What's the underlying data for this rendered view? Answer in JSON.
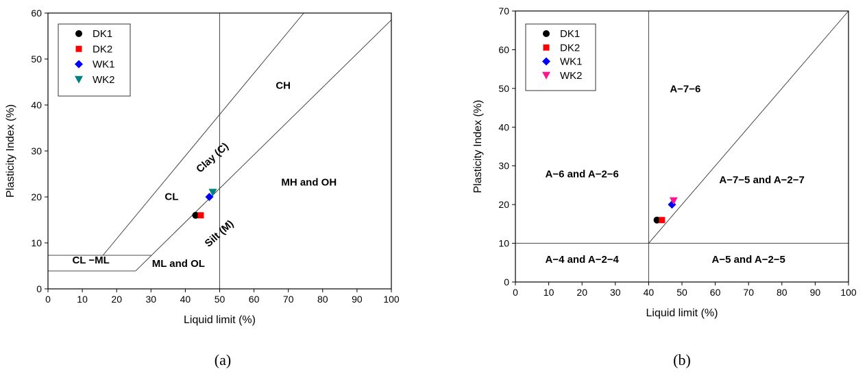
{
  "chart_data": [
    {
      "type": "scatter",
      "panel_label": "(a)",
      "xlabel": "Liquid limit (%)",
      "ylabel": "Plasticity Index (%)",
      "xlim": [
        0,
        100
      ],
      "ylim": [
        0,
        60
      ],
      "x_ticks": [
        0,
        10,
        20,
        30,
        40,
        50,
        60,
        70,
        80,
        90,
        100
      ],
      "y_ticks": [
        0,
        10,
        20,
        30,
        40,
        50,
        60
      ],
      "grid": false,
      "legend_position": "top-left",
      "series": [
        {
          "name": "DK1",
          "marker": "circle",
          "color": "#000000",
          "points": [
            [
              43,
              16
            ]
          ]
        },
        {
          "name": "DK2",
          "marker": "square",
          "color": "#ff0000",
          "points": [
            [
              44.5,
              16
            ]
          ]
        },
        {
          "name": "WK1",
          "marker": "diamond",
          "color": "#0000ff",
          "points": [
            [
              47,
              20
            ]
          ]
        },
        {
          "name": "WK2",
          "marker": "triangle-down",
          "color": "#008080",
          "points": [
            [
              48,
              21
            ]
          ]
        }
      ],
      "lines": [
        {
          "points": [
            [
              16,
              7.3
            ],
            [
              74.5,
              60
            ]
          ]
        },
        {
          "points": [
            [
              25.5,
              3.9
            ],
            [
              100,
              58.5
            ]
          ]
        },
        {
          "points": [
            [
              50,
              0
            ],
            [
              50,
              60
            ]
          ]
        },
        {
          "points": [
            [
              0,
              7.3
            ],
            [
              30,
              7.3
            ]
          ]
        },
        {
          "points": [
            [
              0,
              3.9
            ],
            [
              25.5,
              3.9
            ]
          ]
        },
        {
          "points": [
            [
              0,
              3.9
            ],
            [
              0,
              7.3
            ]
          ]
        }
      ],
      "annotations": [
        {
          "text": "CH",
          "x": 68.5,
          "y": 43.5,
          "color": "#000000",
          "rotate": 0
        },
        {
          "text": "MH and OH",
          "x": 76,
          "y": 22.5,
          "color": "#000000",
          "rotate": 0
        },
        {
          "text": "CL",
          "x": 36,
          "y": 19.3,
          "color": "#000000",
          "rotate": 0
        },
        {
          "text": "CL −ML",
          "x": 12.5,
          "y": 5.5,
          "color": "#000000",
          "rotate": 0
        },
        {
          "text": "ML and OL",
          "x": 38,
          "y": 4.8,
          "color": "#000000",
          "rotate": 0
        },
        {
          "text": "Clay (C)",
          "x": 48.5,
          "y": 28,
          "color": "#0000cc",
          "rotate": -42
        },
        {
          "text": "Silt (M)",
          "x": 50.5,
          "y": 11.5,
          "color": "#ff00aa",
          "rotate": -42
        }
      ]
    },
    {
      "type": "scatter",
      "panel_label": "(b)",
      "xlabel": "Liquid limit (%)",
      "ylabel": "Plasticity Index (%)",
      "xlim": [
        0,
        100
      ],
      "ylim": [
        0,
        70
      ],
      "x_ticks": [
        0,
        10,
        20,
        30,
        40,
        50,
        60,
        70,
        80,
        90,
        100
      ],
      "y_ticks": [
        0,
        10,
        20,
        30,
        40,
        50,
        60,
        70
      ],
      "grid": false,
      "legend_position": "top-left",
      "series": [
        {
          "name": "DK1",
          "marker": "circle",
          "color": "#000000",
          "points": [
            [
              42.5,
              16
            ]
          ]
        },
        {
          "name": "DK2",
          "marker": "square",
          "color": "#ff0000",
          "points": [
            [
              44,
              16
            ]
          ]
        },
        {
          "name": "WK1",
          "marker": "diamond",
          "color": "#0000ff",
          "points": [
            [
              47,
              20
            ]
          ]
        },
        {
          "name": "WK2",
          "marker": "triangle-down",
          "color": "#ff1493",
          "points": [
            [
              47.5,
              21
            ]
          ]
        }
      ],
      "lines": [
        {
          "points": [
            [
              40,
              0
            ],
            [
              40,
              70
            ]
          ]
        },
        {
          "points": [
            [
              0,
              10
            ],
            [
              100,
              10
            ]
          ]
        },
        {
          "points": [
            [
              40,
              10
            ],
            [
              100,
              70
            ]
          ]
        }
      ],
      "annotations": [
        {
          "text": "A−7−6",
          "x": 51,
          "y": 49,
          "color": "#0000cc",
          "rotate": 0
        },
        {
          "text": "A−6  and  A−2−6",
          "x": 20,
          "y": 27,
          "color": "#000000",
          "rotate": 0
        },
        {
          "text": "A−7−5  and  A−2−7",
          "x": 74,
          "y": 25.5,
          "color": "#000000",
          "rotate": 0
        },
        {
          "text": "A−4  and  A−2−4",
          "x": 20,
          "y": 5,
          "color": "#000000",
          "rotate": 0
        },
        {
          "text": "A−5  and  A−2−5",
          "x": 70,
          "y": 5,
          "color": "#000000",
          "rotate": 0
        }
      ]
    }
  ]
}
